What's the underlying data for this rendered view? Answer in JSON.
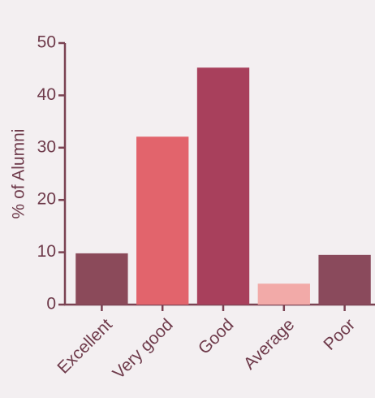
{
  "chart_data": {
    "type": "bar",
    "y_label": "% of Alumni",
    "categories": [
      "Excellent",
      "Very good",
      "Good",
      "Average",
      "Poor"
    ],
    "values": [
      9.8,
      32.1,
      45.3,
      4.0,
      9.5
    ],
    "colors": [
      "#8b4a5a",
      "#e2646c",
      "#a8405c",
      "#f2aaa8",
      "#8a4a5c"
    ],
    "ylim": [
      0,
      50
    ],
    "yticks": [
      0,
      10,
      20,
      30,
      40,
      50
    ],
    "grid": false
  }
}
